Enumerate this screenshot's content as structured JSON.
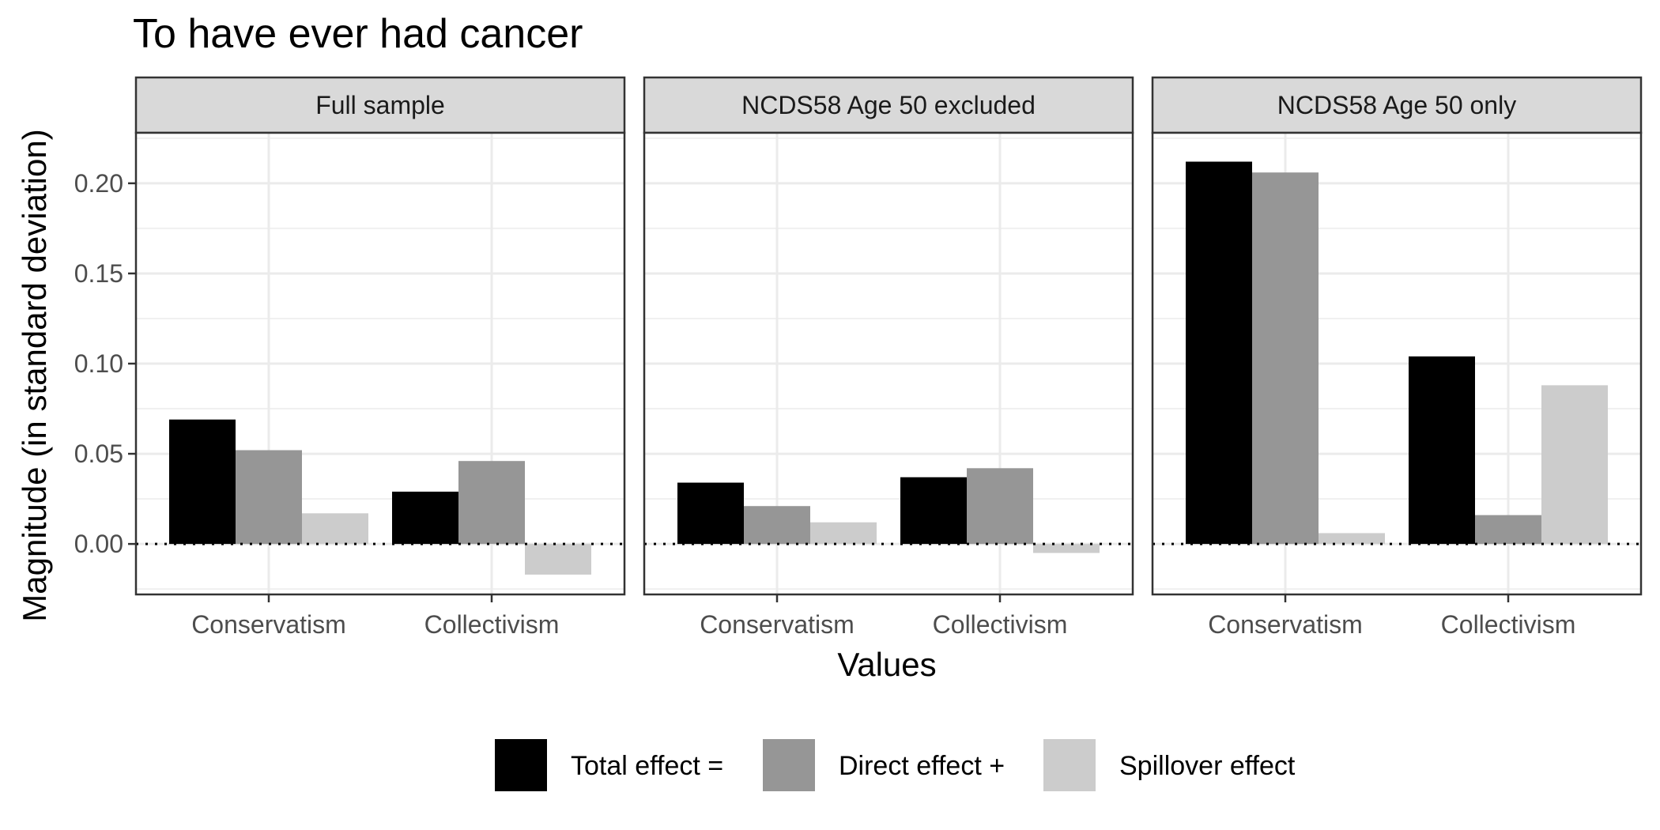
{
  "chart_data": {
    "type": "bar",
    "title": "To have ever had cancer",
    "xlabel": "Values",
    "ylabel": "Magnitude (in standard deviation)",
    "ylim": [
      -0.028,
      0.228
    ],
    "yticks": [
      0.0,
      0.05,
      0.1,
      0.15,
      0.2
    ],
    "ytick_labels": [
      "0.00",
      "0.05",
      "0.10",
      "0.15",
      "0.20"
    ],
    "grid": true,
    "reference_line": 0,
    "legend_position": "bottom",
    "categories": [
      "Conservatism",
      "Collectivism"
    ],
    "series": [
      {
        "name": "Total effect =",
        "color": "#000000"
      },
      {
        "name": "Direct effect +",
        "color": "#969696"
      },
      {
        "name": "Spillover effect",
        "color": "#cccccc"
      }
    ],
    "panels": [
      {
        "label": "Full sample",
        "values": [
          [
            0.069,
            0.052,
            0.017
          ],
          [
            0.029,
            0.046,
            -0.017
          ]
        ]
      },
      {
        "label": "NCDS58 Age 50 excluded",
        "values": [
          [
            0.034,
            0.021,
            0.012
          ],
          [
            0.037,
            0.042,
            -0.005
          ]
        ]
      },
      {
        "label": "NCDS58 Age 50 only",
        "values": [
          [
            0.212,
            0.206,
            0.006
          ],
          [
            0.104,
            0.016,
            0.088
          ]
        ]
      }
    ]
  }
}
